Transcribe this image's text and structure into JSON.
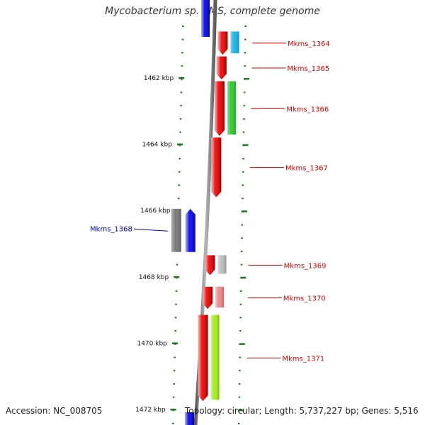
{
  "title": "Mycobacterium sp. KMS, complete genome",
  "footer": {
    "accession": "Accession: NC_008705",
    "summary": "Topology: circular; Length: 5,737,227 bp; Genes: 5,516"
  },
  "colors": {
    "gene_label_forward": "#dd0000",
    "gene_label_reverse": "#0000cc",
    "tick": "#1a7a1a",
    "backbone": "#7a7a7a"
  },
  "scale": {
    "unit": "kbp",
    "ticks": [
      {
        "label": "1462 kbp",
        "kbp": 1462
      },
      {
        "label": "1464 kbp",
        "kbp": 1464
      },
      {
        "label": "1466 kbp",
        "kbp": 1466
      },
      {
        "label": "1468 kbp",
        "kbp": 1468
      },
      {
        "label": "1470 kbp",
        "kbp": 1470
      },
      {
        "label": "1472 kbp",
        "kbp": 1472
      }
    ]
  },
  "genes": [
    {
      "name": "Mkms_1364",
      "strand": "+",
      "kbp_start": 1460.6,
      "kbp_end": 1461.3,
      "feature_color": "#18b8e8"
    },
    {
      "name": "Mkms_1365",
      "strand": "+",
      "kbp_start": 1461.35,
      "kbp_end": 1462.05,
      "feature_color": ""
    },
    {
      "name": "Mkms_1366",
      "strand": "+",
      "kbp_start": 1462.1,
      "kbp_end": 1463.75,
      "feature_color": "#33cc33"
    },
    {
      "name": "Mkms_1367",
      "strand": "+",
      "kbp_start": 1463.8,
      "kbp_end": 1465.6,
      "feature_color": ""
    },
    {
      "name": "Mkms_1368",
      "strand": "-",
      "kbp_start": 1465.95,
      "kbp_end": 1467.25,
      "feature_color": "#7a7a7a"
    },
    {
      "name": "Mkms_1369",
      "strand": "+",
      "kbp_start": 1467.35,
      "kbp_end": 1467.95,
      "feature_color": "#bdbdbd"
    },
    {
      "name": "Mkms_1370",
      "strand": "+",
      "kbp_start": 1468.3,
      "kbp_end": 1468.97,
      "feature_color": "#ee8a8a"
    },
    {
      "name": "Mkms_1371",
      "strand": "+",
      "kbp_start": 1469.15,
      "kbp_end": 1471.75,
      "feature_color": "#a6ee22"
    }
  ]
}
